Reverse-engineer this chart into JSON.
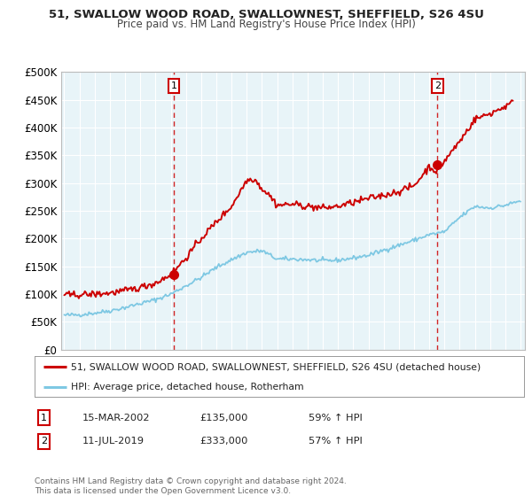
{
  "title": "51, SWALLOW WOOD ROAD, SWALLOWNEST, SHEFFIELD, S26 4SU",
  "subtitle": "Price paid vs. HM Land Registry's House Price Index (HPI)",
  "hpi_color": "#7ec8e3",
  "price_color": "#cc0000",
  "sale1_x": 2002.21,
  "sale1_y": 135000,
  "sale2_x": 2019.54,
  "sale2_y": 333000,
  "vline1_x": 2002.21,
  "vline2_x": 2019.54,
  "xlim_start": 1994.8,
  "xlim_end": 2025.3,
  "ylim_min": 0,
  "ylim_max": 500000,
  "yticks": [
    0,
    50000,
    100000,
    150000,
    200000,
    250000,
    300000,
    350000,
    400000,
    450000,
    500000
  ],
  "ytick_labels": [
    "£0",
    "£50K",
    "£100K",
    "£150K",
    "£200K",
    "£250K",
    "£300K",
    "£350K",
    "£400K",
    "£450K",
    "£500K"
  ],
  "xticks": [
    1995,
    1996,
    1997,
    1998,
    1999,
    2000,
    2001,
    2002,
    2003,
    2004,
    2005,
    2006,
    2007,
    2008,
    2009,
    2010,
    2011,
    2012,
    2013,
    2014,
    2015,
    2016,
    2017,
    2018,
    2019,
    2020,
    2021,
    2022,
    2023,
    2024,
    2025
  ],
  "legend_price_label": "51, SWALLOW WOOD ROAD, SWALLOWNEST, SHEFFIELD, S26 4SU (detached house)",
  "legend_hpi_label": "HPI: Average price, detached house, Rotherham",
  "table_row1": [
    "1",
    "15-MAR-2002",
    "£135,000",
    "59% ↑ HPI"
  ],
  "table_row2": [
    "2",
    "11-JUL-2019",
    "£333,000",
    "57% ↑ HPI"
  ],
  "footer": "Contains HM Land Registry data © Crown copyright and database right 2024.\nThis data is licensed under the Open Government Licence v3.0.",
  "bg_color": "#ffffff",
  "plot_bg_color": "#e8f4f8",
  "grid_color": "#ffffff",
  "hpi_years": [
    1995,
    1996,
    1997,
    1998,
    1999,
    2000,
    2001,
    2002,
    2003,
    2004,
    2005,
    2006,
    2007,
    2008,
    2009,
    2010,
    2011,
    2012,
    2013,
    2014,
    2015,
    2016,
    2017,
    2018,
    2019,
    2020,
    2021,
    2022,
    2023,
    2024,
    2025
  ],
  "hpi_values": [
    62000,
    63000,
    66000,
    70000,
    76000,
    83000,
    90000,
    100000,
    115000,
    130000,
    148000,
    162000,
    175000,
    178000,
    163000,
    163000,
    162000,
    160000,
    161000,
    165000,
    170000,
    179000,
    188000,
    197000,
    207000,
    212000,
    238000,
    258000,
    255000,
    260000,
    268000
  ],
  "price_years": [
    1995,
    1996,
    1997,
    1998,
    1999,
    2000,
    2001,
    2002,
    2003,
    2004,
    2005,
    2006,
    2007,
    2007.5,
    2008,
    2008.5,
    2009,
    2010,
    2011,
    2012,
    2013,
    2014,
    2015,
    2016,
    2017,
    2018,
    2019,
    2019.5,
    2020,
    2021,
    2022,
    2023,
    2024,
    2024.5
  ],
  "price_values": [
    98000,
    99000,
    100000,
    102000,
    106000,
    112000,
    120000,
    135000,
    165000,
    200000,
    230000,
    258000,
    305000,
    308000,
    290000,
    278000,
    260000,
    262000,
    258000,
    255000,
    258000,
    265000,
    272000,
    278000,
    285000,
    295000,
    330000,
    320000,
    340000,
    375000,
    415000,
    425000,
    438000,
    445000
  ]
}
